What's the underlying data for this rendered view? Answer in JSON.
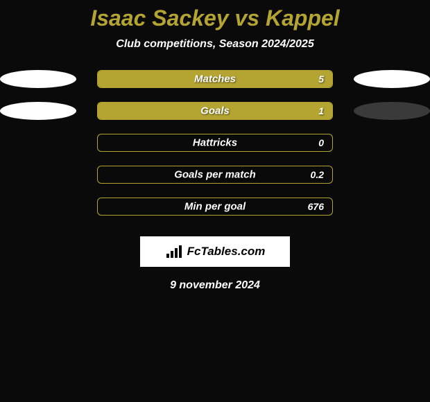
{
  "title": "Isaac Sackey vs Kappel",
  "subtitle": "Club competitions, Season 2024/2025",
  "colors": {
    "background": "#0a0a0a",
    "accent": "#b4a432",
    "text_white": "#ffffff",
    "ellipse_left": "#ffffff",
    "ellipse_right_1": "#ffffff",
    "ellipse_right_2": "#3a3a3a"
  },
  "rows": [
    {
      "label": "Matches",
      "value": "5",
      "fill_pct": 100,
      "ellipse_right_color": "#ffffff"
    },
    {
      "label": "Goals",
      "value": "1",
      "fill_pct": 100,
      "ellipse_right_color": "#3a3a3a"
    }
  ],
  "bars_only": [
    {
      "label": "Hattricks",
      "value": "0",
      "fill_pct": 0
    },
    {
      "label": "Goals per match",
      "value": "0.2",
      "fill_pct": 0
    },
    {
      "label": "Min per goal",
      "value": "676",
      "fill_pct": 0
    }
  ],
  "logo": {
    "text": "FcTables.com"
  },
  "date": "9 november 2024",
  "typography": {
    "title_fontsize": 32,
    "subtitle_fontsize": 16,
    "bar_label_fontsize": 15,
    "bar_value_fontsize": 14,
    "date_fontsize": 16
  }
}
